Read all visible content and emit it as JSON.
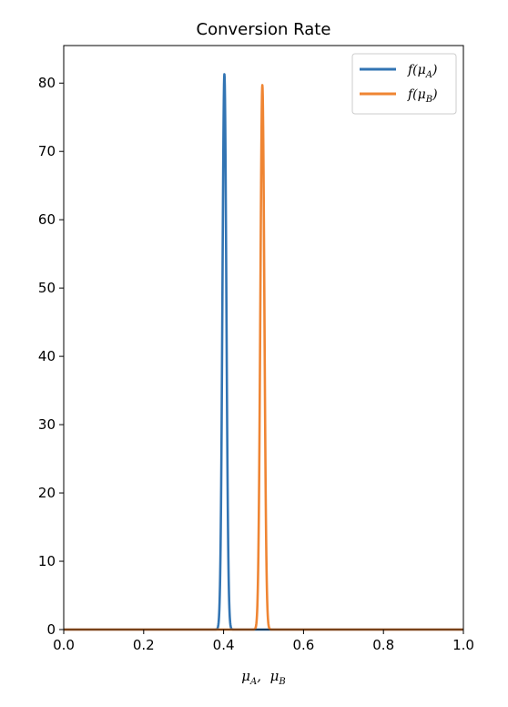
{
  "chart_data": {
    "type": "line",
    "title": "Conversion Rate",
    "xlabel": "μA, μB",
    "xlabel_parts": [
      {
        "sym": "μ",
        "sub": "A",
        "sep": ", "
      },
      {
        "sym": "μ",
        "sub": "B",
        "sep": ""
      }
    ],
    "ylabel": "",
    "xlim": [
      0.0,
      1.0
    ],
    "ylim": [
      0,
      85.5
    ],
    "xticks": [
      0.0,
      0.2,
      0.4,
      0.6,
      0.8,
      1.0
    ],
    "xtick_labels": [
      "0.0",
      "0.2",
      "0.4",
      "0.6",
      "0.8",
      "1.0"
    ],
    "yticks": [
      0,
      10,
      20,
      30,
      40,
      50,
      60,
      70,
      80
    ],
    "ytick_labels": [
      "0",
      "10",
      "20",
      "30",
      "40",
      "50",
      "60",
      "70",
      "80"
    ],
    "grid": false,
    "legend_position": "top-right",
    "series": [
      {
        "name": "f(μA)",
        "func": "f",
        "var": "μ",
        "sub": "A",
        "color": "#3274b3",
        "peak_x": 0.402,
        "peak_y": 81.3,
        "sigma": 0.0049
      },
      {
        "name": "f(μB)",
        "func": "f",
        "var": "μ",
        "sub": "B",
        "color": "#ef8533",
        "peak_x": 0.497,
        "peak_y": 79.7,
        "sigma": 0.005
      }
    ]
  }
}
